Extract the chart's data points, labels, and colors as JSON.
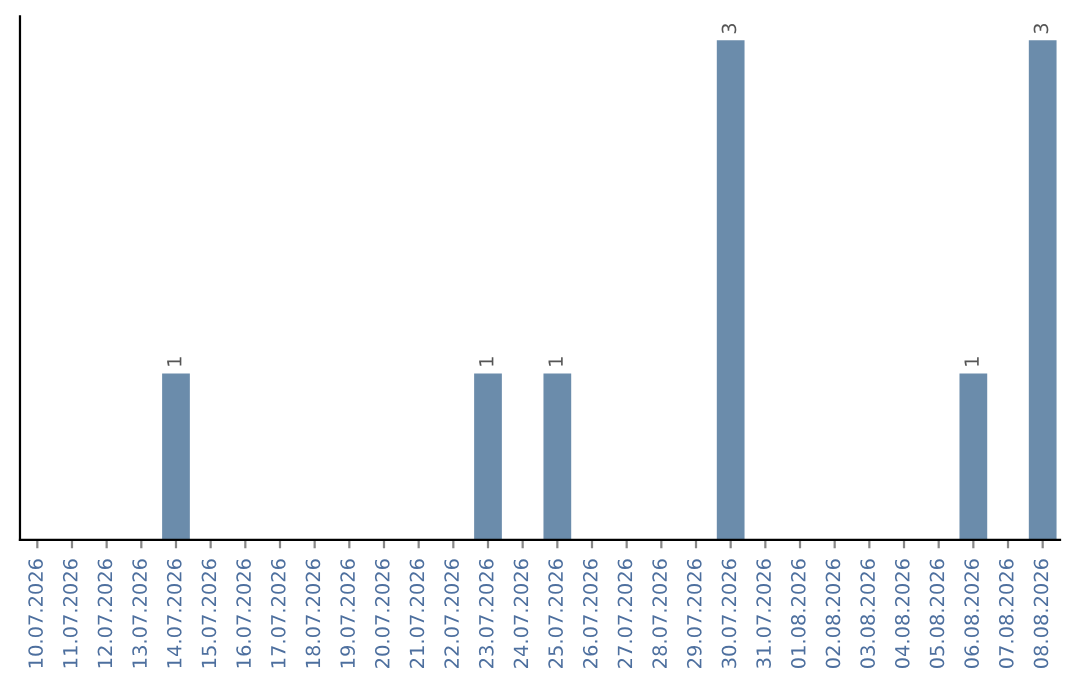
{
  "chart_data": {
    "type": "bar",
    "categories": [
      "10.07.2026",
      "11.07.2026",
      "12.07.2026",
      "13.07.2026",
      "14.07.2026",
      "15.07.2026",
      "16.07.2026",
      "17.07.2026",
      "18.07.2026",
      "19.07.2026",
      "20.07.2026",
      "21.07.2026",
      "22.07.2026",
      "23.07.2026",
      "24.07.2026",
      "25.07.2026",
      "26.07.2026",
      "27.07.2026",
      "28.07.2026",
      "29.07.2026",
      "30.07.2026",
      "31.07.2026",
      "01.08.2026",
      "02.08.2026",
      "03.08.2026",
      "04.08.2026",
      "05.08.2026",
      "06.08.2026",
      "07.08.2026",
      "08.08.2026"
    ],
    "values": [
      0,
      0,
      0,
      0,
      1,
      0,
      0,
      0,
      0,
      0,
      0,
      0,
      0,
      1,
      0,
      1,
      0,
      0,
      0,
      0,
      3,
      0,
      0,
      0,
      0,
      0,
      0,
      1,
      0,
      3
    ],
    "value_labels": [
      null,
      null,
      null,
      null,
      "1",
      null,
      null,
      null,
      null,
      null,
      null,
      null,
      null,
      "1",
      null,
      "1",
      null,
      null,
      null,
      null,
      "3",
      null,
      null,
      null,
      null,
      null,
      null,
      "1",
      null,
      "3"
    ],
    "color": "#6b8cab",
    "tick_labels": "x",
    "grid": false,
    "legend": false
  }
}
